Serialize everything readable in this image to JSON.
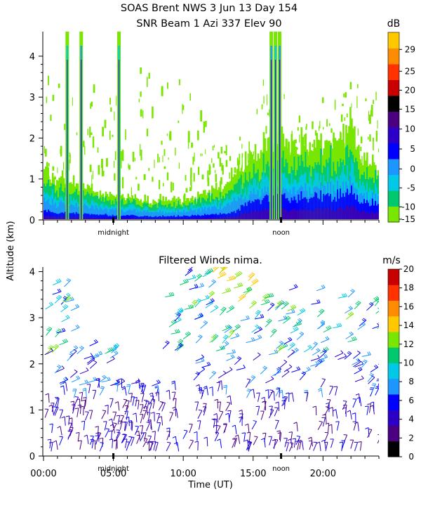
{
  "title": {
    "line1": "SOAS Brent NWS    3 Jun 13 Day 154",
    "line2": "SNR Beam 1 Azi 337 Elev 90"
  },
  "ylabel_shared": "Altitude (km)",
  "chart_data": [
    {
      "type": "heatmap",
      "title": "SNR Beam 1 Azi 337 Elev 90",
      "ylim": [
        0,
        4.6
      ],
      "xlim": [
        0,
        24
      ],
      "y_ticks": [
        "0",
        "1",
        "2",
        "3",
        "4"
      ],
      "markers": [
        {
          "label": "midnight",
          "x": 5.0
        },
        {
          "label": "noon",
          "x": 17.0
        }
      ],
      "colorbar": {
        "unit": "dB",
        "ticks": [
          "29",
          "25",
          "20",
          "15",
          "10",
          "5",
          "0",
          "-5",
          "-10",
          "-15"
        ],
        "colors": [
          "#78e600",
          "#00c86e",
          "#00c8e6",
          "#1e96ff",
          "#0000ff",
          "#2d00c8",
          "#4b0082",
          "#000000",
          "#c80000",
          "#ff3200",
          "#ff8c00",
          "#ffc800"
        ]
      },
      "features": {
        "boundary_layer_top_km": [
          1.2,
          1.0,
          0.9,
          0.8,
          0.7,
          0.6,
          0.6,
          0.5,
          0.5,
          0.5,
          0.5,
          0.6,
          0.7,
          0.9,
          1.2,
          1.5,
          1.8,
          1.9,
          1.9,
          1.8,
          1.9,
          2.0,
          2.2,
          1.4,
          1.3
        ],
        "vertical_streaks_h": [
          1.7,
          2.7,
          5.4,
          16.3,
          16.6,
          16.9
        ]
      }
    },
    {
      "type": "barbs",
      "title": "Filtered Winds nima.",
      "ylim": [
        0,
        4.1
      ],
      "xlim": [
        0,
        24
      ],
      "x_ticks": [
        "00:00",
        "05:00",
        "10:00",
        "15:00",
        "20:00"
      ],
      "xlabel": "Time (UT)",
      "y_ticks": [
        "0",
        "1",
        "2",
        "3",
        "4"
      ],
      "markers": [
        {
          "label": "midnight",
          "x": 5.0
        },
        {
          "label": "noon",
          "x": 17.0
        }
      ],
      "colorbar": {
        "unit": "m/s",
        "ticks": [
          "20",
          "18",
          "16",
          "14",
          "12",
          "10",
          "8",
          "6",
          "4",
          "2",
          "0"
        ],
        "colors": [
          "#000000",
          "#4b0082",
          "#2d00c8",
          "#0000ff",
          "#1e96ff",
          "#00c8e6",
          "#00c86e",
          "#78e600",
          "#ffc800",
          "#ff8c00",
          "#ff3200",
          "#c80000"
        ]
      }
    }
  ]
}
